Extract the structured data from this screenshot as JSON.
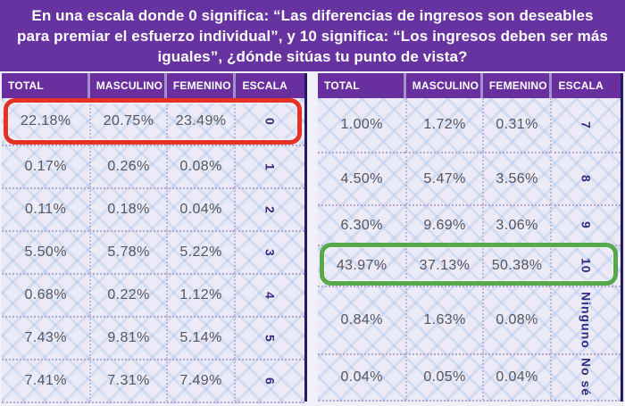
{
  "title": "En una escala donde 0 significa: “Las diferencias de ingresos son deseables para premiar el esfuerzo individual”, y 10 significa: “Los ingresos deben ser más iguales”, ¿dónde sitúas tu punto de vista?",
  "colors": {
    "banner_purple": "#6733a1",
    "header_purple": "#6a2f9e",
    "cell_background": "#eceaf6",
    "cell_text": "#56555f",
    "scale_text": "#332b85",
    "red_highlight": "#e63226",
    "green_highlight": "#55a94c",
    "table_edge_navy": "#221b5e"
  },
  "left_table": {
    "headers": [
      "TOTAL",
      "MASCULINO",
      "FEMENINO",
      "ESCALA"
    ],
    "rows": [
      [
        "22.18%",
        "20.75%",
        "23.49%",
        "0"
      ],
      [
        "0.17%",
        "0.26%",
        "0.08%",
        "1"
      ],
      [
        "0.11%",
        "0.18%",
        "0.04%",
        "2"
      ],
      [
        "5.50%",
        "5.78%",
        "5.22%",
        "3"
      ],
      [
        "0.68%",
        "0.22%",
        "1.12%",
        "4"
      ],
      [
        "7.43%",
        "9.81%",
        "5.14%",
        "5"
      ],
      [
        "7.41%",
        "7.31%",
        "7.49%",
        "6"
      ]
    ],
    "highlight": {
      "row_index": 0,
      "color": "red"
    }
  },
  "right_table": {
    "headers": [
      "TOTAL",
      "MASCULINO",
      "FEMENINO",
      "ESCALA"
    ],
    "rows": [
      [
        "1.00%",
        "1.72%",
        "0.31%",
        "7"
      ],
      [
        "4.50%",
        "5.47%",
        "3.56%",
        "8"
      ],
      [
        "6.30%",
        "9.69%",
        "3.06%",
        "9"
      ],
      [
        "43.97%",
        "37.13%",
        "50.38%",
        "10"
      ],
      [
        "0.84%",
        "1.63%",
        "0.08%",
        "Ninguno"
      ],
      [
        "0.04%",
        "0.05%",
        "0.04%",
        "No sé"
      ]
    ],
    "highlight": {
      "row_index": 3,
      "color": "green"
    }
  },
  "chart_data": {
    "type": "table",
    "title": "En una escala donde 0 significa: “Las diferencias de ingresos son deseables para premiar el esfuerzo individual”, y 10 significa: “Los ingresos deben ser más iguales”, ¿dónde sitúas tu punto de vista?",
    "categories": [
      "0",
      "1",
      "2",
      "3",
      "4",
      "5",
      "6",
      "7",
      "8",
      "9",
      "10",
      "Ninguno",
      "No sé"
    ],
    "series": [
      {
        "name": "Total",
        "values": [
          22.18,
          0.17,
          0.11,
          5.5,
          0.68,
          7.43,
          7.41,
          1.0,
          4.5,
          6.3,
          43.97,
          0.84,
          0.04
        ]
      },
      {
        "name": "Masculino",
        "values": [
          20.75,
          0.26,
          0.18,
          5.78,
          0.22,
          9.81,
          7.31,
          1.72,
          5.47,
          9.69,
          37.13,
          1.63,
          0.05
        ]
      },
      {
        "name": "Femenino",
        "values": [
          23.49,
          0.08,
          0.04,
          5.22,
          1.12,
          5.14,
          7.49,
          0.31,
          3.56,
          3.06,
          50.38,
          0.08,
          0.04
        ]
      }
    ],
    "units": "percent",
    "annotations": [
      {
        "category": "0",
        "note": "row outlined in red"
      },
      {
        "category": "10",
        "note": "row outlined in green"
      }
    ]
  }
}
